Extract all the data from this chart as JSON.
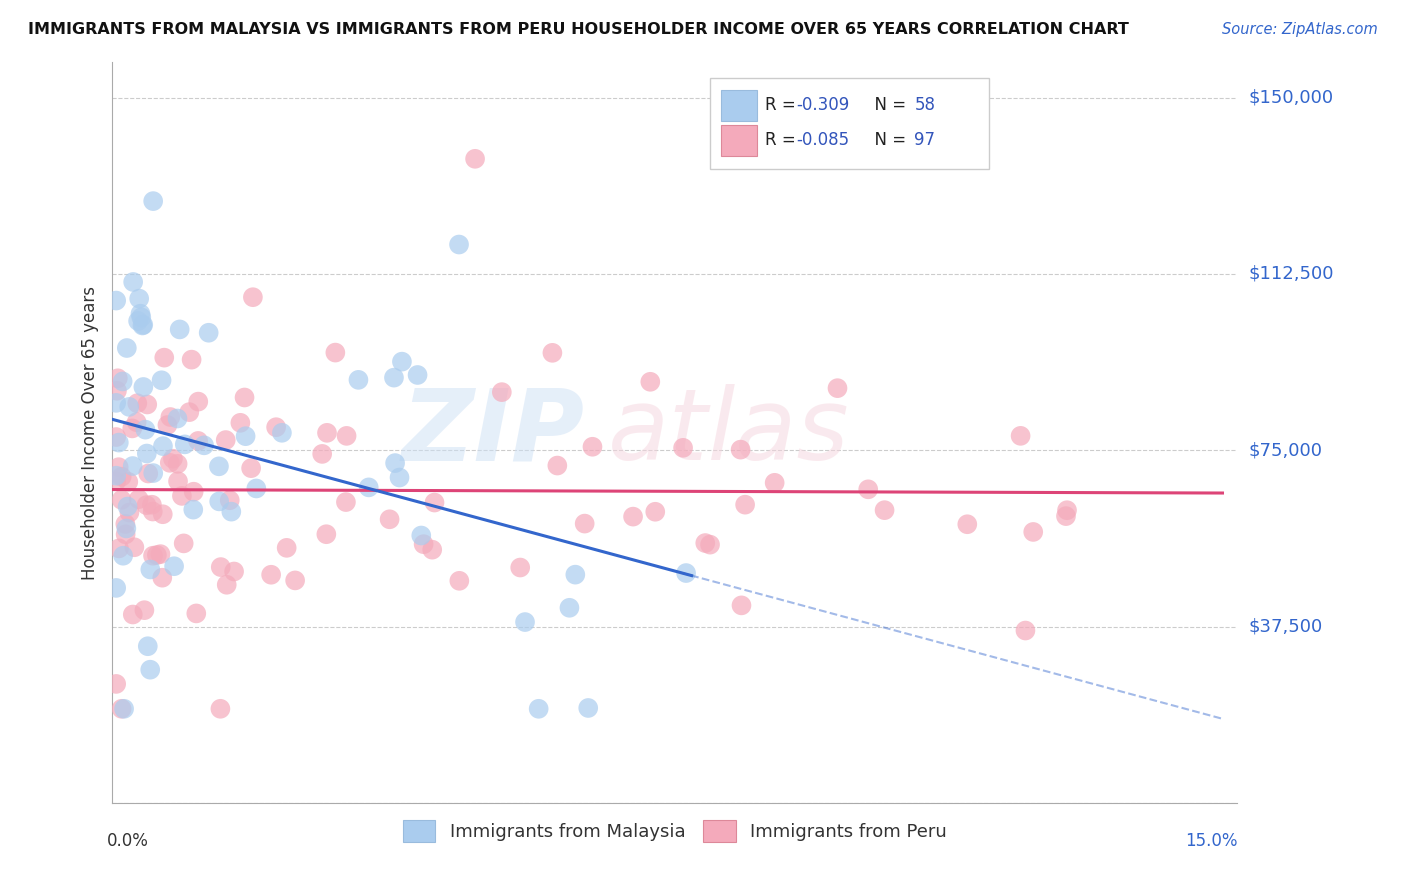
{
  "title": "IMMIGRANTS FROM MALAYSIA VS IMMIGRANTS FROM PERU HOUSEHOLDER INCOME OVER 65 YEARS CORRELATION CHART",
  "source": "Source: ZipAtlas.com",
  "ylabel": "Householder Income Over 65 years",
  "xlim": [
    0.0,
    15.0
  ],
  "ylim": [
    0,
    157500
  ],
  "yticks": [
    0,
    37500,
    75000,
    112500,
    150000
  ],
  "xticks": [
    0.0,
    3.0,
    6.0,
    9.0,
    12.0,
    15.0
  ],
  "malaysia_color": "#aaccee",
  "peru_color": "#f4aabb",
  "malaysia_edge": "none",
  "peru_edge": "none",
  "trend_malaysia_color": "#3366cc",
  "trend_peru_color": "#dd4477",
  "R_malaysia": -0.309,
  "N_malaysia": 58,
  "R_peru": -0.085,
  "N_peru": 97,
  "legend_R_color": "#3355bb",
  "right_label_color": "#3366cc",
  "title_color": "#111111",
  "source_color": "#3366cc",
  "grid_color": "#cccccc",
  "text_color": "#333333"
}
